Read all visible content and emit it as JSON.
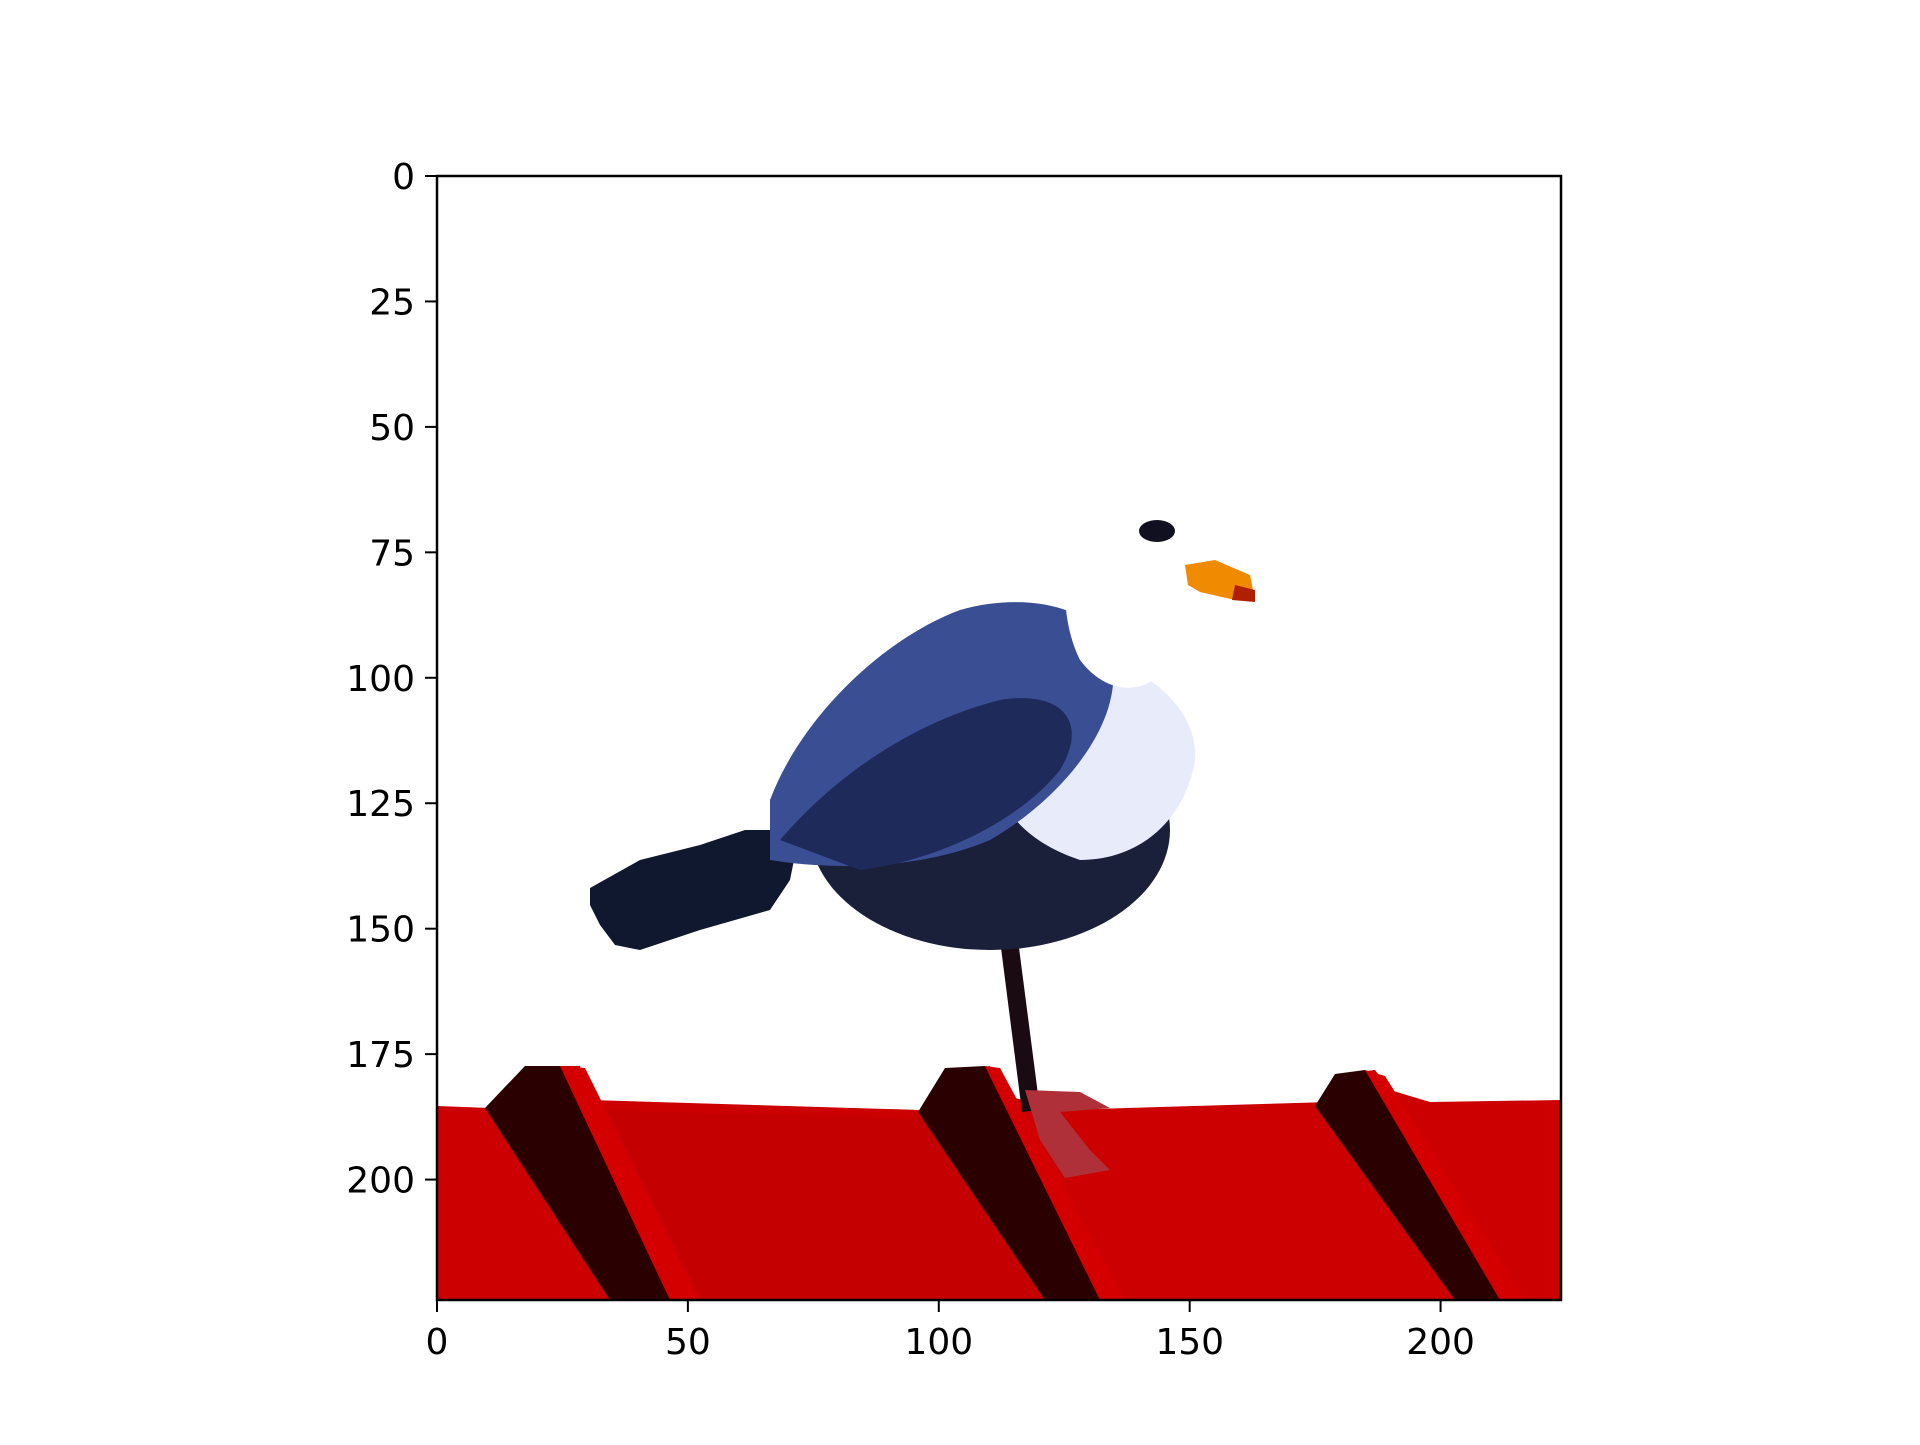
{
  "figure": {
    "kind": "image-plot (imshow)",
    "image_subject": "seagull standing on a red corrugated roof",
    "x_range": [
      0,
      224
    ],
    "y_range": [
      0,
      224
    ],
    "x_tick_labels": [
      "0",
      "50",
      "100",
      "150",
      "200"
    ],
    "y_tick_labels": [
      "0",
      "25",
      "50",
      "75",
      "100",
      "125",
      "150",
      "175",
      "200"
    ],
    "colors": {
      "sky": "#ffffff",
      "roof": "#cc0000",
      "roof_shadow": "#2a0000",
      "gull_back": "#2e3f80",
      "gull_body": "#1a1f3a",
      "gull_white": "#f2f4ff",
      "beak": "#f08a00",
      "axis": "#000000"
    }
  }
}
